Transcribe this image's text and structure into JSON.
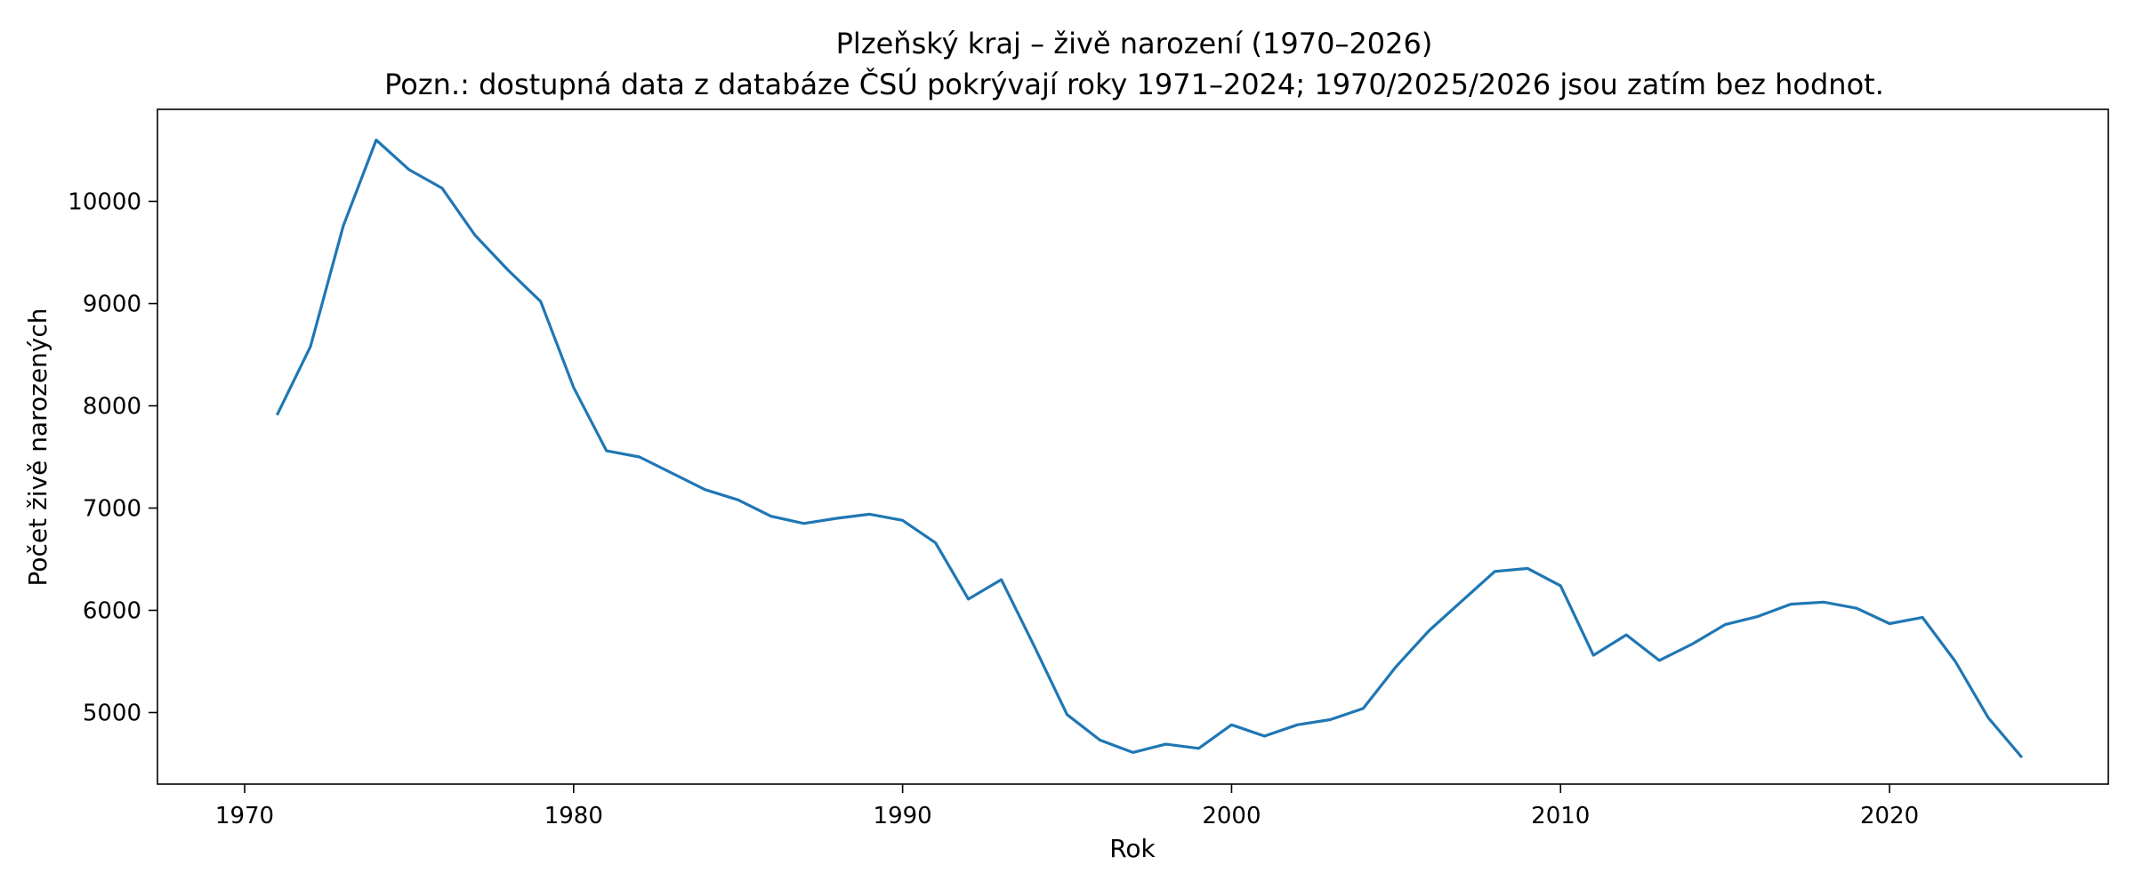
{
  "chart_data": {
    "type": "line",
    "title": "Plzeňský kraj – živě narození (1970–2026)",
    "subtitle": "Pozn.: dostupná data z databáze ČSÚ pokrývají roky 1971–2024; 1970/2025/2026 jsou zatím bez hodnot.",
    "xlabel": "Rok",
    "ylabel": "Počet živě narozených",
    "xlim": [
      1967.35,
      2026.65
    ],
    "ylim": [
      4300,
      10900
    ],
    "xticks": [
      1970,
      1980,
      1990,
      2000,
      2010,
      2020
    ],
    "yticks": [
      5000,
      6000,
      7000,
      8000,
      9000,
      10000
    ],
    "grid": false,
    "colors": {
      "line": "#1f77b4"
    },
    "series": [
      {
        "x": [
          1971,
          1972,
          1973,
          1974,
          1975,
          1976,
          1977,
          1978,
          1979,
          1980,
          1981,
          1982,
          1983,
          1984,
          1985,
          1986,
          1987,
          1988,
          1989,
          1990,
          1991,
          1992,
          1993,
          1994,
          1995,
          1996,
          1997,
          1998,
          1999,
          2000,
          2001,
          2002,
          2003,
          2004,
          2005,
          2006,
          2007,
          2008,
          2009,
          2010,
          2011,
          2012,
          2013,
          2014,
          2015,
          2016,
          2017,
          2018,
          2019,
          2020,
          2021,
          2022,
          2023,
          2024
        ],
        "values": [
          7920,
          8580,
          9760,
          10600,
          10310,
          10130,
          9670,
          9330,
          9020,
          8180,
          7560,
          7500,
          7340,
          7180,
          7080,
          6920,
          6850,
          6900,
          6940,
          6880,
          6660,
          6110,
          6300,
          5650,
          4980,
          4730,
          4610,
          4690,
          4650,
          4880,
          4770,
          4880,
          4930,
          5040,
          5450,
          5800,
          6090,
          6380,
          6410,
          6240,
          5560,
          5760,
          5510,
          5670,
          5860,
          5940,
          6060,
          6080,
          6020,
          5870,
          5930,
          5500,
          4950,
          4570
        ]
      }
    ]
  }
}
